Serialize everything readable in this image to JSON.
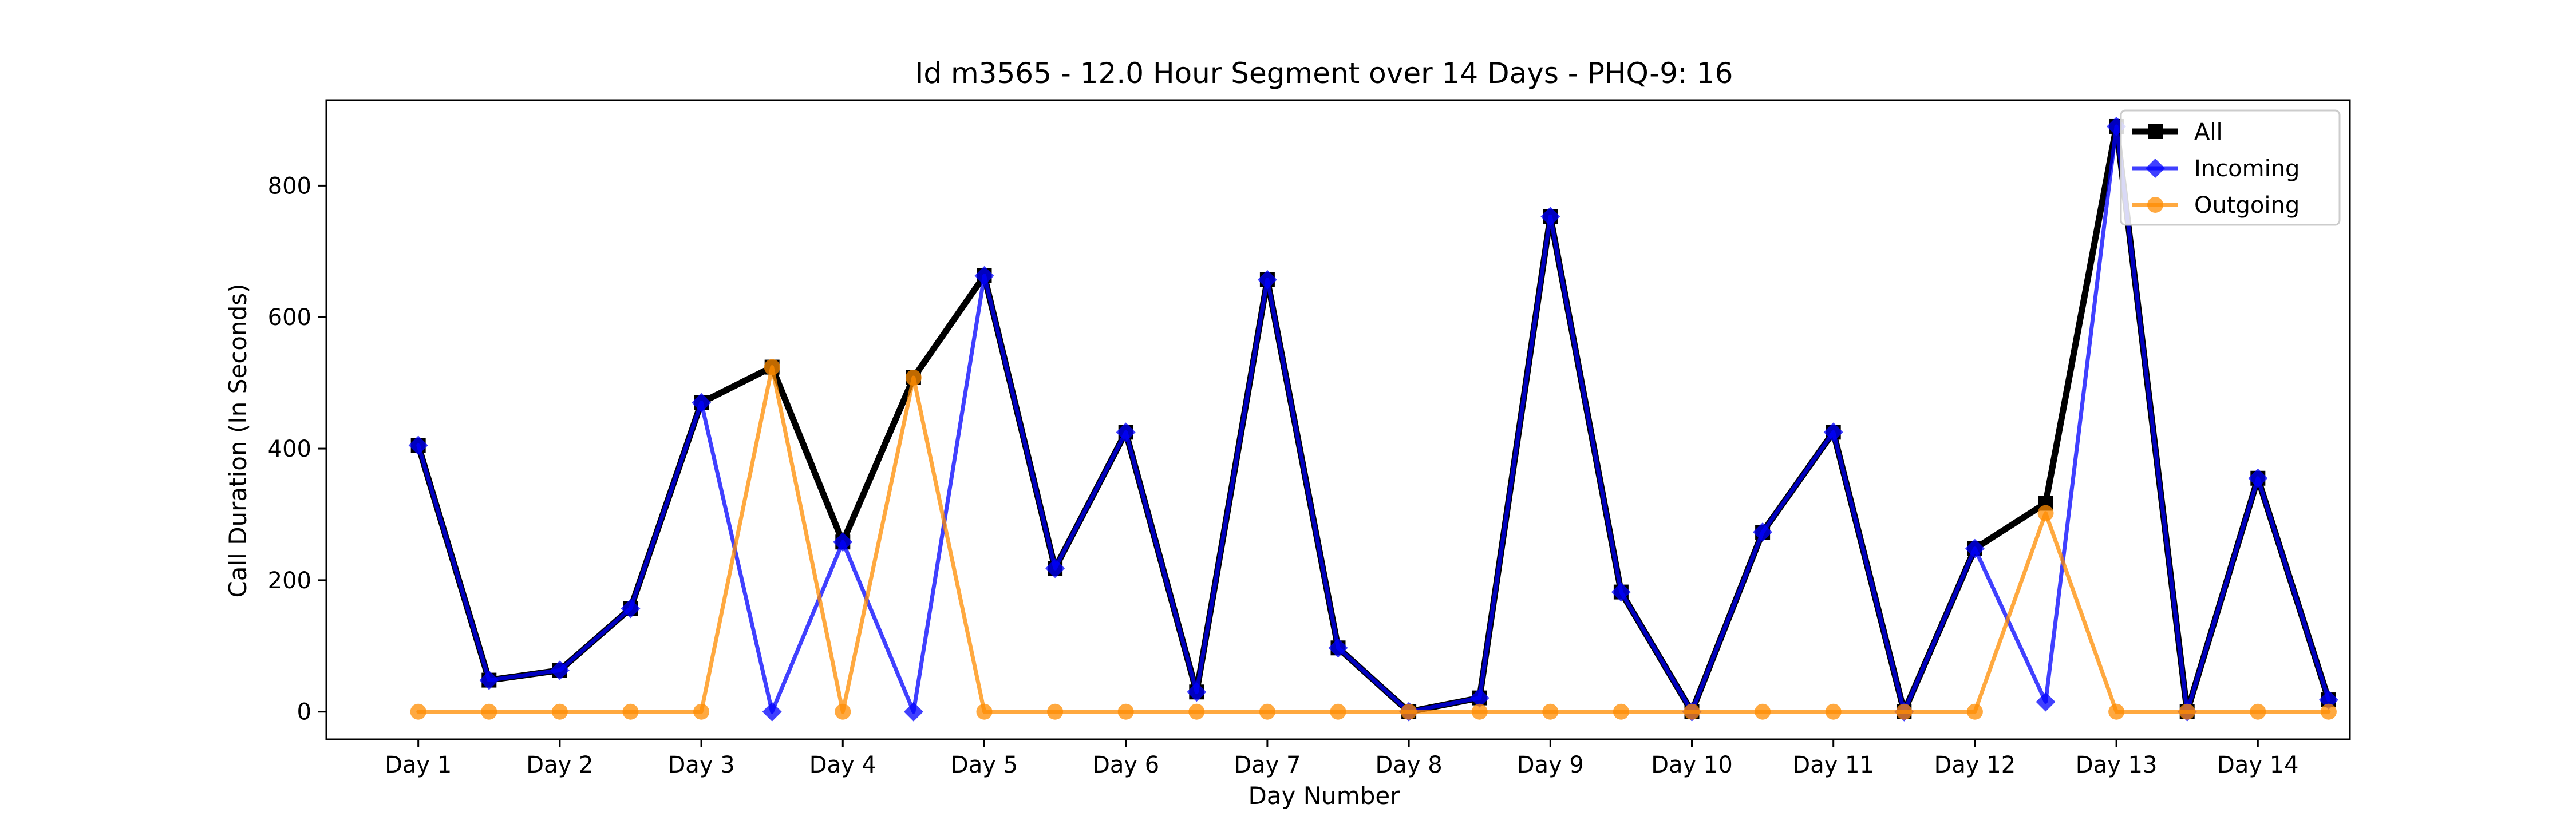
{
  "chart_data": {
    "type": "line",
    "title": "Id m3565 - 12.0 Hour Segment over 14 Days - PHQ-9: 16",
    "xlabel": "Day Number",
    "ylabel": "Call Duration (In Seconds)",
    "xlim": [
      0.35,
      14.65
    ],
    "ylim": [
      -42,
      930
    ],
    "x": [
      1,
      1.5,
      2,
      2.5,
      3,
      3.5,
      4,
      4.5,
      5,
      5.5,
      6,
      6.5,
      7,
      7.5,
      8,
      8.5,
      9,
      9.5,
      10,
      10.5,
      11,
      11.5,
      12,
      12.5,
      13,
      13.5,
      14,
      14.5
    ],
    "xticks": [
      1,
      2,
      3,
      4,
      5,
      6,
      7,
      8,
      9,
      10,
      11,
      12,
      13,
      14
    ],
    "xtick_labels": [
      "Day 1",
      "Day 2",
      "Day 3",
      "Day 4",
      "Day 5",
      "Day 6",
      "Day 7",
      "Day 8",
      "Day 9",
      "Day 10",
      "Day 11",
      "Day 12",
      "Day 13",
      "Day 14"
    ],
    "yticks": [
      0,
      200,
      400,
      600,
      800
    ],
    "legend_position": "top-right",
    "grid": false,
    "series": [
      {
        "name": "All",
        "color": "#000000",
        "marker": "square",
        "values": [
          405,
          48,
          63,
          157,
          470,
          524,
          258,
          508,
          663,
          218,
          425,
          30,
          657,
          97,
          0,
          21,
          753,
          182,
          0,
          273,
          425,
          0,
          248,
          317,
          890,
          0,
          355,
          18
        ]
      },
      {
        "name": "Incoming",
        "color": "#0000ff",
        "marker": "diamond",
        "values": [
          405,
          48,
          63,
          157,
          470,
          0,
          258,
          0,
          663,
          218,
          425,
          30,
          657,
          97,
          0,
          21,
          753,
          182,
          0,
          273,
          425,
          0,
          248,
          15,
          890,
          0,
          355,
          18
        ]
      },
      {
        "name": "Outgoing",
        "color": "#ff8c00",
        "marker": "circle",
        "values": [
          0,
          0,
          0,
          0,
          0,
          524,
          0,
          508,
          0,
          0,
          0,
          0,
          0,
          0,
          0,
          0,
          0,
          0,
          0,
          0,
          0,
          0,
          0,
          302,
          0,
          0,
          0,
          0
        ]
      }
    ]
  }
}
